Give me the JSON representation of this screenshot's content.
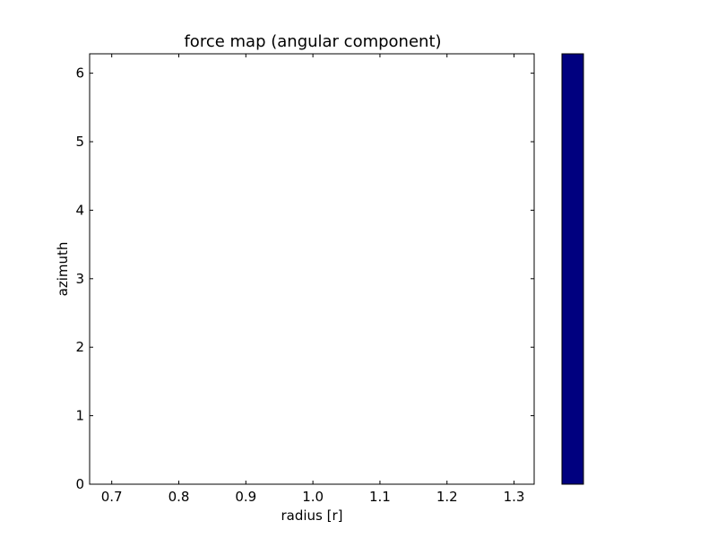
{
  "chart_data": {
    "type": "heatmap",
    "title": "force map (angular component)",
    "xlabel": "radius [r]",
    "ylabel": "azimuth",
    "xlim": [
      0.667,
      1.33
    ],
    "ylim": [
      0,
      6.2832
    ],
    "x_ticks": [
      0.7,
      0.8,
      0.9,
      1.0,
      1.1,
      1.2,
      1.3
    ],
    "x_tick_labels": [
      "0.7",
      "0.8",
      "0.9",
      "1.0",
      "1.1",
      "1.2",
      "1.3"
    ],
    "y_ticks": [
      0,
      1,
      2,
      3,
      4,
      5,
      6
    ],
    "y_tick_labels": [
      "0",
      "1",
      "2",
      "3",
      "4",
      "5",
      "6"
    ],
    "grid": false,
    "plot_fill": "#ffffff",
    "colorbar": {
      "color": "#00007f",
      "tick_labels": []
    },
    "values": []
  }
}
